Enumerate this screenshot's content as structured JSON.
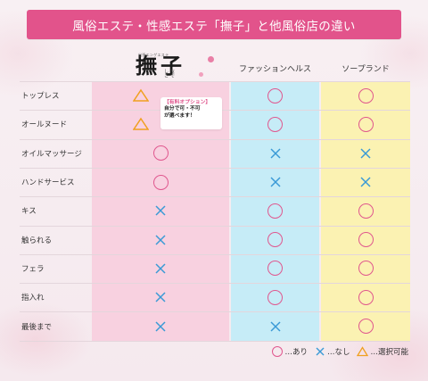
{
  "title": "風俗エステ・性感エステ「撫子」と他風俗店の違い",
  "logo": {
    "small_text": "出張エンゲエステ",
    "main_text": "撫子",
    "reading": "なでしこ"
  },
  "columns": {
    "nadeshiko": "撫子",
    "fashion_health": "ファッションヘルス",
    "soapland": "ソープランド"
  },
  "rows": [
    {
      "label": "トップレス",
      "nadeshiko": "triangle",
      "fashion_health": "circle",
      "soapland": "circle"
    },
    {
      "label": "オールヌード",
      "nadeshiko": "triangle",
      "fashion_health": "circle",
      "soapland": "circle"
    },
    {
      "label": "オイルマッサージ",
      "nadeshiko": "circle",
      "fashion_health": "cross",
      "soapland": "cross"
    },
    {
      "label": "ハンドサービス",
      "nadeshiko": "circle",
      "fashion_health": "cross",
      "soapland": "cross"
    },
    {
      "label": "キス",
      "nadeshiko": "cross",
      "fashion_health": "circle",
      "soapland": "circle"
    },
    {
      "label": "触られる",
      "nadeshiko": "cross",
      "fashion_health": "circle",
      "soapland": "circle"
    },
    {
      "label": "フェラ",
      "nadeshiko": "cross",
      "fashion_health": "circle",
      "soapland": "circle"
    },
    {
      "label": "指入れ",
      "nadeshiko": "cross",
      "fashion_health": "circle",
      "soapland": "circle"
    },
    {
      "label": "最後まで",
      "nadeshiko": "cross",
      "fashion_health": "cross",
      "soapland": "circle"
    }
  ],
  "callout": {
    "title": "【有料オプション】",
    "line1": "自分で可・不可",
    "line2": "が選べます！"
  },
  "legend": {
    "circle": "…あり",
    "cross": "…なし",
    "triangle": "…選択可能"
  },
  "colors": {
    "title_bg": "#e2538b",
    "nadeshiko_col": "#f8d1e0",
    "fashion_health_col": "#c6ecf7",
    "soapland_col": "#fbf2b2",
    "circle": "#e0578e",
    "cross": "#3a9ad6",
    "triangle": "#f0a020"
  }
}
